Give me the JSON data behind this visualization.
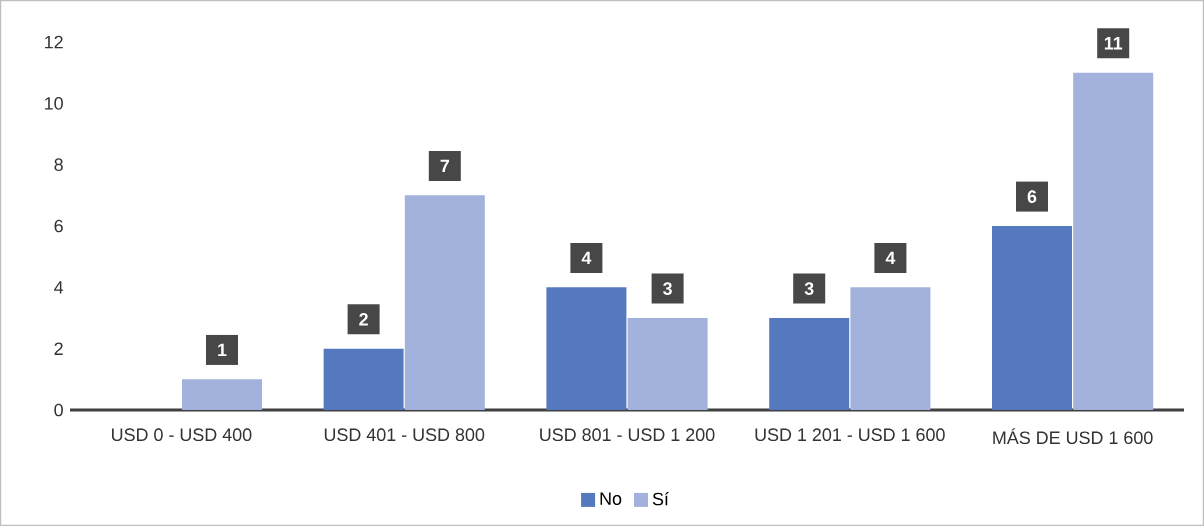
{
  "chart_data": {
    "type": "bar",
    "categories": [
      "USD 0 - USD 400",
      "USD 401 - USD 800",
      "USD 801 - USD 1 200",
      "USD 1 201 - USD 1 600",
      "MÁS DE USD 1 600"
    ],
    "series": [
      {
        "name": "No",
        "color": "#5579bf",
        "values": [
          null,
          2,
          4,
          3,
          6
        ]
      },
      {
        "name": "Sí",
        "color": "#a3b2dc",
        "values": [
          1,
          7,
          3,
          4,
          11
        ]
      }
    ],
    "ylim": [
      0,
      12
    ],
    "yticks": [
      0,
      2,
      4,
      6,
      8,
      10,
      12
    ],
    "grid": false,
    "legend": "bottom",
    "data_labels": true
  }
}
